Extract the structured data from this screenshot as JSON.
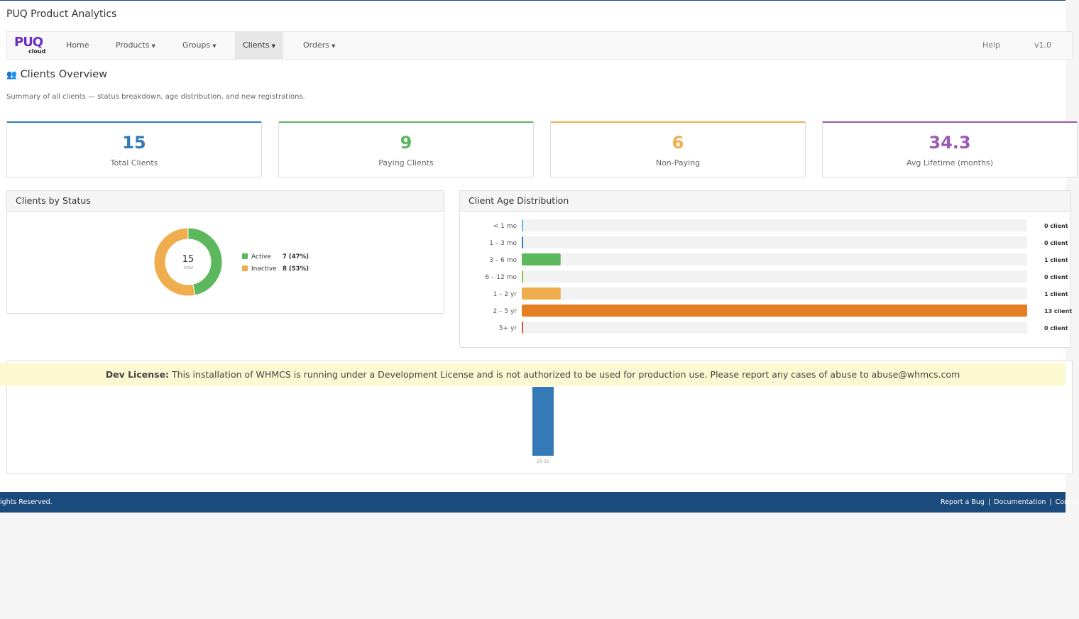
{
  "header": {
    "title": "PUQ Product Analytics"
  },
  "nav": {
    "logo": "PUQ",
    "logo_sub": "cloud",
    "items": [
      "Home",
      "Products",
      "Groups",
      "Clients",
      "Orders"
    ],
    "active": 3,
    "right": [
      "Help",
      "v1.0"
    ]
  },
  "page": {
    "title": "Clients Overview",
    "subtitle": "Summary of all clients — status breakdown, age distribution, and new registrations."
  },
  "stats": [
    {
      "value": 15,
      "label": "Total Clients",
      "color": "#337ab7"
    },
    {
      "value": 9,
      "label": "Paying Clients",
      "color": "#5cb85c"
    },
    {
      "value": 6,
      "label": "Non-Paying",
      "color": "#f0ad4e"
    },
    {
      "value": 34.3,
      "label": "Avg Lifetime (months)",
      "color": "#9b59b6"
    }
  ],
  "status_chart": {
    "type": "pie",
    "title": "Clients by Status",
    "center_value": 15,
    "center_label": "Total",
    "categories": [
      "Active",
      "Inactive"
    ],
    "values": [
      7,
      8
    ],
    "value_labels": [
      "7 (47%)",
      "8 (53%)"
    ],
    "colors": [
      "#5cb85c",
      "#f0ad4e"
    ]
  },
  "age_chart": {
    "type": "bar",
    "title": "Client Age Distribution",
    "categories": [
      "< 1 mo",
      "1 – 3 mo",
      "3 – 6 mo",
      "6 – 12 mo",
      "1 – 2 yr",
      "2 – 5 yr",
      "5+ yr"
    ],
    "values": [
      0,
      0,
      1,
      0,
      1,
      13,
      0
    ],
    "value_labels": [
      "0 client",
      "0 client",
      "1 client",
      "0 client",
      "1 client",
      "13 client",
      "0 client"
    ],
    "colors": [
      "#5bc0de",
      "#337ab7",
      "#5cb85c",
      "#8bc34a",
      "#f0ad4e",
      "#e67e22",
      "#d9534f"
    ]
  },
  "registrations_chart": {
    "type": "bar",
    "categories": [
      "25-11"
    ],
    "values": [
      1
    ],
    "color": "#337ab7"
  },
  "banner": {
    "label": "Dev License:",
    "text": "This installation of WHMCS is running under a Development License and is not authorized to be used for production use. Please report any cases of abuse to abuse@whmcs.com"
  },
  "footer": {
    "left": "ights Reserved.",
    "links": [
      "Report a Bug",
      "Documentation",
      "Contac"
    ]
  }
}
